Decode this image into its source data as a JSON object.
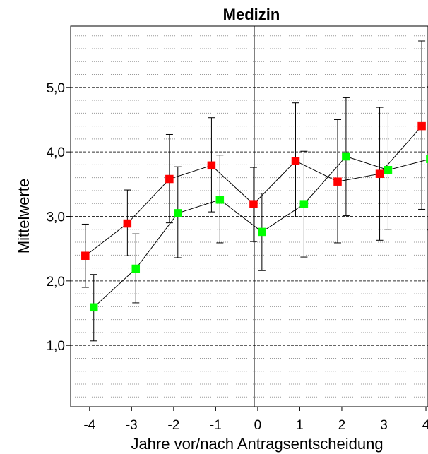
{
  "chart_data": {
    "type": "scatter",
    "title": "Medizin",
    "xlabel": "Jahre vor/nach Antragsentscheidung",
    "ylabel": "Mittelwerte",
    "x_ticks": [
      "-4",
      "-3",
      "-2",
      "-1",
      "0",
      "1",
      "2",
      "3",
      "4"
    ],
    "y_ticks": [
      "1,0",
      "2,0",
      "3,0",
      "4,0",
      "5,0"
    ],
    "xlim": [
      -4.45,
      4.05
    ],
    "ylim": [
      0.05,
      5.95
    ],
    "grid": true,
    "series": [
      {
        "color": "#ff0000",
        "points": [
          {
            "x": -4.1,
            "y": 2.39,
            "low": 1.9,
            "high": 2.88
          },
          {
            "x": -3.1,
            "y": 2.89,
            "low": 2.39,
            "high": 3.41
          },
          {
            "x": -2.1,
            "y": 3.58,
            "low": 2.9,
            "high": 4.27
          },
          {
            "x": -1.1,
            "y": 3.79,
            "low": 3.07,
            "high": 4.53
          },
          {
            "x": -0.1,
            "y": 3.19,
            "low": 2.61,
            "high": 3.76
          },
          {
            "x": 0.9,
            "y": 3.86,
            "low": 2.99,
            "high": 4.76
          },
          {
            "x": 1.9,
            "y": 3.54,
            "low": 2.59,
            "high": 4.5
          },
          {
            "x": 2.9,
            "y": 3.66,
            "low": 2.63,
            "high": 4.69
          },
          {
            "x": 3.9,
            "y": 4.4,
            "low": 3.11,
            "high": 5.72
          }
        ]
      },
      {
        "color": "#00ff00",
        "points": [
          {
            "x": -3.9,
            "y": 1.59,
            "low": 1.07,
            "high": 2.1
          },
          {
            "x": -2.9,
            "y": 2.19,
            "low": 1.66,
            "high": 2.73
          },
          {
            "x": -1.9,
            "y": 3.05,
            "low": 2.36,
            "high": 3.77
          },
          {
            "x": -0.9,
            "y": 3.26,
            "low": 2.59,
            "high": 3.95
          },
          {
            "x": 0.1,
            "y": 2.76,
            "low": 2.16,
            "high": 3.36
          },
          {
            "x": 1.1,
            "y": 3.19,
            "low": 2.37,
            "high": 4.01
          },
          {
            "x": 2.1,
            "y": 3.93,
            "low": 3.01,
            "high": 4.84
          },
          {
            "x": 3.1,
            "y": 3.72,
            "low": 2.8,
            "high": 4.62
          },
          {
            "x": 4.1,
            "y": 3.89,
            "low": 2.79,
            "high": 5.01
          }
        ]
      }
    ]
  }
}
